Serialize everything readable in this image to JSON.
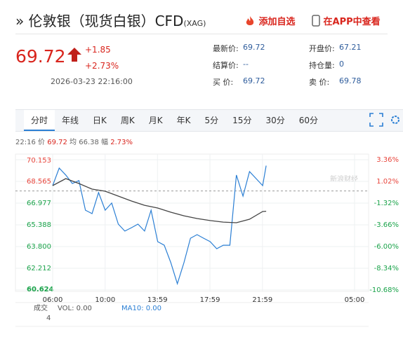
{
  "header": {
    "title": "伦敦银（现货白银）CFD",
    "code": "(XAG)",
    "add_watch": "添加自选",
    "app": "在APP中查看"
  },
  "quote": {
    "price": "69.72",
    "change": "+1.85",
    "change_pct": "+2.73%",
    "time": "2026-03-23 22:16:00",
    "fields": [
      {
        "label": "最新价:",
        "value": "69.72"
      },
      {
        "label": "开盘价:",
        "value": "67.21"
      },
      {
        "label": "结算价:",
        "value": "--"
      },
      {
        "label": "持仓量:",
        "value": "0"
      },
      {
        "label": "买 价:",
        "value": "69.72"
      },
      {
        "label": "卖 价:",
        "value": "69.78"
      }
    ]
  },
  "tabs": [
    "分时",
    "年线",
    "日K",
    "周K",
    "月K",
    "年K",
    "5分",
    "15分",
    "30分",
    "60分"
  ],
  "info": {
    "time": "22:16",
    "price_label": "价",
    "price": "69.72",
    "avg_label": "均",
    "avg": "66.38",
    "amp_label": "幅",
    "amp": "2.73%"
  },
  "watermark": "新浪财经",
  "chart_data": {
    "type": "line",
    "xlim": [
      "06:00",
      "05:00"
    ],
    "xticks": [
      "06:00",
      "10:00",
      "13:59",
      "17:59",
      "21:59",
      "05:00"
    ],
    "ylim": [
      60.624,
      70.153
    ],
    "yticks": [
      70.153,
      68.565,
      66.977,
      65.388,
      {
        "value": 63.8,
        "label": "63.800"
      },
      62.212,
      60.624
    ],
    "y2lim": [
      -10.68,
      3.36
    ],
    "y2ticks": [
      {
        "value": 3.36,
        "label": "3.36%"
      },
      {
        "value": 1.02,
        "label": "1.02%"
      },
      {
        "value": -1.32,
        "label": "-1.32%"
      },
      {
        "value": -3.66,
        "label": "-3.66%"
      },
      {
        "value": -6,
        "label": "-6.00%"
      },
      {
        "value": -8.34,
        "label": "-8.34%"
      },
      {
        "value": -10.68,
        "label": "-10.68%"
      }
    ],
    "ref_line": 67.87,
    "series": [
      {
        "color": "#2b7fd4",
        "x": [
          "06:00",
          "06:30",
          "07:00",
          "07:30",
          "08:00",
          "08:30",
          "09:00",
          "09:30",
          "10:00",
          "10:30",
          "11:00",
          "11:30",
          "12:00",
          "12:30",
          "13:00",
          "13:30",
          "14:00",
          "14:30",
          "15:00",
          "15:30",
          "16:00",
          "16:30",
          "17:00",
          "17:30",
          "18:00",
          "18:30",
          "19:00",
          "19:30",
          "20:00",
          "20:30",
          "21:00",
          "21:30",
          "22:00",
          "22:16"
        ],
        "values": [
          68.26,
          69.54,
          69.03,
          68.41,
          68.62,
          66.46,
          66.21,
          67.75,
          66.46,
          66.98,
          65.44,
          64.93,
          65.18,
          65.44,
          64.93,
          66.46,
          64.16,
          63.9,
          62.62,
          61.08,
          62.62,
          64.41,
          64.67,
          64.41,
          64.16,
          63.64,
          63.9,
          63.9,
          69.03,
          67.49,
          69.28,
          68.77,
          68.26,
          69.72
        ]
      },
      {
        "color": "#444444",
        "x": [
          "06:00",
          "07:00",
          "08:00",
          "09:00",
          "10:00",
          "11:00",
          "12:00",
          "13:00",
          "14:00",
          "15:00",
          "16:00",
          "17:00",
          "18:00",
          "19:00",
          "20:00",
          "21:00",
          "22:00",
          "22:16"
        ],
        "values": [
          68.26,
          68.77,
          68.41,
          68.0,
          67.85,
          67.49,
          67.13,
          66.82,
          66.62,
          66.31,
          66.05,
          65.85,
          65.7,
          65.59,
          65.54,
          65.8,
          66.36,
          66.38
        ]
      }
    ]
  },
  "volume": {
    "label": "成交",
    "vol": "VOL: 0.00",
    "ma": "MA10: 0.00",
    "axis": "4"
  }
}
